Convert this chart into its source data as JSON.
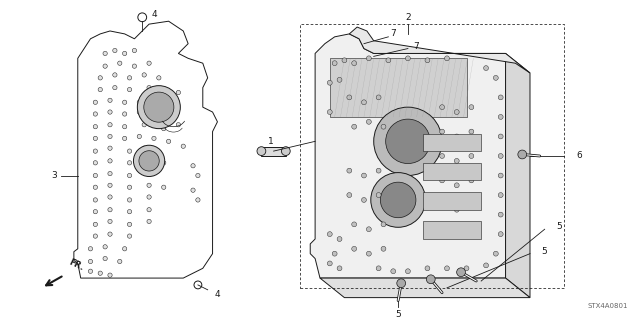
{
  "background_color": "#ffffff",
  "diagram_code": "STX4A0801",
  "fig_width": 6.4,
  "fig_height": 3.19,
  "xlim": [
    0,
    64
  ],
  "ylim": [
    0,
    31.9
  ]
}
